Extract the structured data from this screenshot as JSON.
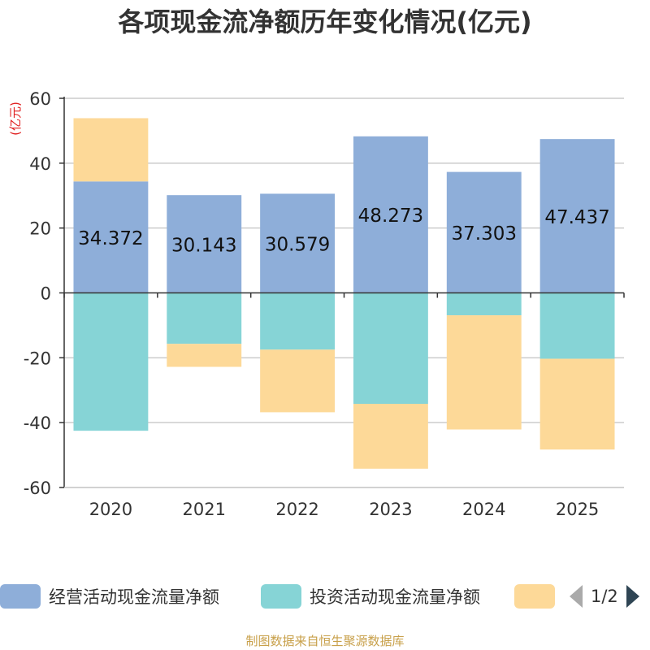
{
  "chart_data": {
    "type": "bar",
    "stacked": true,
    "title": "各项现金流净额历年变化情况(亿元)",
    "ylabel": "(亿元)",
    "xlabel": "",
    "ylim": [
      -60,
      60
    ],
    "yticks": [
      60,
      40,
      20,
      0,
      -20,
      -40,
      -60
    ],
    "categories": [
      "2020",
      "2021",
      "2022",
      "2023",
      "2024",
      "2025"
    ],
    "series": [
      {
        "name": "经营活动现金流量净额",
        "color": "#8eaed9",
        "values": [
          34.372,
          30.143,
          30.579,
          48.273,
          37.303,
          47.437
        ],
        "labels": [
          "34.372",
          "30.143",
          "30.579",
          "48.273",
          "37.303",
          "47.437"
        ]
      },
      {
        "name": "投资活动现金流量净额",
        "color": "#86d4d6",
        "values": [
          -42.5,
          -15.7,
          -17.5,
          -34.2,
          -6.9,
          -20.3
        ]
      },
      {
        "name": "",
        "color": "#fdd998",
        "values": [
          19.5,
          -7.1,
          -19.3,
          -20.0,
          -35.2,
          -28.0
        ]
      }
    ]
  },
  "legend": {
    "items": [
      "经营活动现金流量净额",
      "投资活动现金流量净额",
      ""
    ],
    "page": "1/2"
  },
  "source": "制图数据来自恒生聚源数据库"
}
